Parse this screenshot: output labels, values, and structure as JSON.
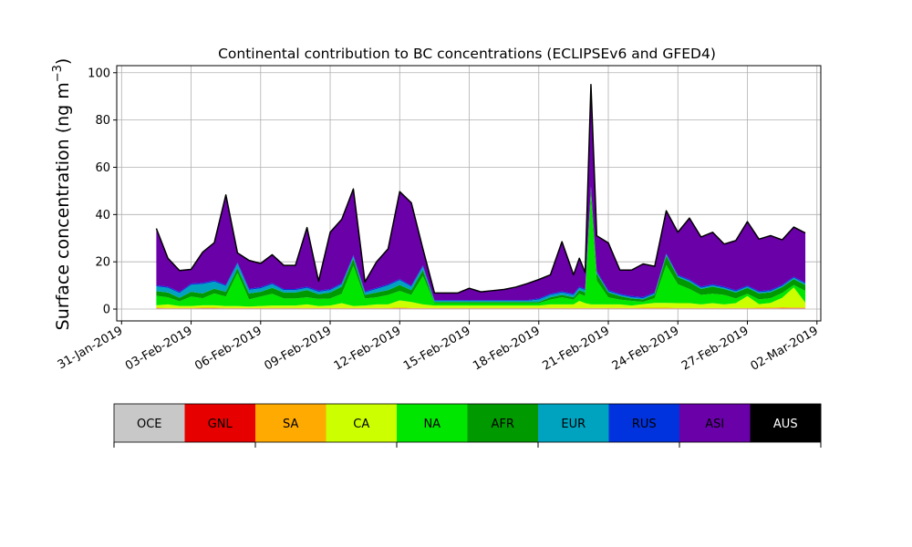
{
  "chart_data": {
    "type": "area",
    "stacked": true,
    "title": "Continental contribution to BC concentrations (ECLIPSEv6 and GFED4)",
    "xlabel": "",
    "ylabel": "Surface concentration (ng m",
    "ylabel_exponent": "−3",
    "ylabel_close": ")",
    "xlim": [
      "2019-01-30T19:00",
      "2019-03-02T04:00"
    ],
    "ylim": [
      -5,
      103
    ],
    "grid": true,
    "x_ticks": [
      "2019-01-31",
      "2019-02-03",
      "2019-02-06",
      "2019-02-09",
      "2019-02-12",
      "2019-02-15",
      "2019-02-18",
      "2019-02-21",
      "2019-02-24",
      "2019-02-27",
      "2019-03-02"
    ],
    "x_tick_labels": [
      "31-Jan-2019",
      "03-Feb-2019",
      "06-Feb-2019",
      "09-Feb-2019",
      "12-Feb-2019",
      "15-Feb-2019",
      "18-Feb-2019",
      "21-Feb-2019",
      "24-Feb-2019",
      "27-Feb-2019",
      "02-Mar-2019"
    ],
    "y_ticks": [
      0,
      20,
      40,
      60,
      80,
      100
    ],
    "y_tick_labels": [
      "0",
      "20",
      "40",
      "60",
      "80",
      "100"
    ],
    "x": [
      "2019-02-01T12:00",
      "2019-02-02T00:00",
      "2019-02-02T12:00",
      "2019-02-03T00:00",
      "2019-02-03T12:00",
      "2019-02-04T00:00",
      "2019-02-04T12:00",
      "2019-02-05T00:00",
      "2019-02-05T12:00",
      "2019-02-06T00:00",
      "2019-02-06T12:00",
      "2019-02-07T00:00",
      "2019-02-07T12:00",
      "2019-02-08T00:00",
      "2019-02-08T12:00",
      "2019-02-09T00:00",
      "2019-02-09T12:00",
      "2019-02-10T00:00",
      "2019-02-10T12:00",
      "2019-02-11T00:00",
      "2019-02-11T12:00",
      "2019-02-12T00:00",
      "2019-02-12T12:00",
      "2019-02-13T00:00",
      "2019-02-13T12:00",
      "2019-02-14T00:00",
      "2019-02-14T12:00",
      "2019-02-15T00:00",
      "2019-02-15T12:00",
      "2019-02-16T00:00",
      "2019-02-16T12:00",
      "2019-02-17T00:00",
      "2019-02-17T12:00",
      "2019-02-18T00:00",
      "2019-02-18T12:00",
      "2019-02-19T00:00",
      "2019-02-19T12:00",
      "2019-02-19T18:00",
      "2019-02-20T00:00",
      "2019-02-20T06:00",
      "2019-02-20T12:00",
      "2019-02-21T00:00",
      "2019-02-21T12:00",
      "2019-02-22T00:00",
      "2019-02-22T12:00",
      "2019-02-23T00:00",
      "2019-02-23T12:00",
      "2019-02-24T00:00",
      "2019-02-24T12:00",
      "2019-02-25T00:00",
      "2019-02-25T12:00",
      "2019-02-26T00:00",
      "2019-02-26T12:00",
      "2019-02-27T00:00",
      "2019-02-27T12:00",
      "2019-02-28T00:00",
      "2019-02-28T12:00",
      "2019-03-01T00:00",
      "2019-03-01T12:00"
    ],
    "series": [
      {
        "name": "OCE",
        "color": "#c8c8c8",
        "values": [
          0.3,
          0.2,
          0.2,
          0.2,
          0.3,
          0.3,
          0.2,
          0.2,
          0.2,
          0.2,
          0.2,
          0.2,
          0.2,
          0.2,
          0.2,
          0.2,
          0.2,
          0.2,
          0.2,
          0.2,
          0.2,
          0.3,
          0.2,
          0.2,
          0.2,
          0.2,
          0.2,
          0.2,
          0.2,
          0.2,
          0.2,
          0.2,
          0.2,
          0.2,
          0.2,
          0.2,
          0.2,
          0.2,
          0.2,
          0.2,
          0.2,
          0.2,
          0.2,
          0.2,
          0.2,
          0.2,
          0.2,
          0.2,
          0.2,
          0.2,
          0.2,
          0.2,
          0.2,
          0.2,
          0.2,
          0.2,
          0.3,
          0.3,
          0.3
        ]
      },
      {
        "name": "GNL",
        "color": "#e60000",
        "values": [
          0.1,
          0.1,
          0.1,
          0.1,
          0.1,
          0.1,
          0.1,
          0.1,
          0.1,
          0.1,
          0.1,
          0.1,
          0.1,
          0.1,
          0.1,
          0.1,
          0.1,
          0.1,
          0.1,
          0.1,
          0.1,
          0.1,
          0.1,
          0.1,
          0.1,
          0.1,
          0.1,
          0.1,
          0.1,
          0.1,
          0.1,
          0.1,
          0.1,
          0.1,
          0.1,
          0.1,
          0.1,
          0.1,
          0.1,
          0.1,
          0.1,
          0.1,
          0.1,
          0.1,
          0.1,
          0.1,
          0.1,
          0.1,
          0.1,
          0.1,
          0.1,
          0.1,
          0.1,
          0.1,
          0.1,
          0.1,
          0.1,
          0.1,
          0.1
        ]
      },
      {
        "name": "SA",
        "color": "#ffaa00",
        "values": [
          0.2,
          0.2,
          0.2,
          0.2,
          0.2,
          0.2,
          0.2,
          0.2,
          0.2,
          0.2,
          0.2,
          0.2,
          0.2,
          0.2,
          0.2,
          0.2,
          0.2,
          0.2,
          0.2,
          0.2,
          0.2,
          0.3,
          0.2,
          0.2,
          0.2,
          0.2,
          0.2,
          0.2,
          0.2,
          0.2,
          0.2,
          0.2,
          0.2,
          0.2,
          0.2,
          0.2,
          0.2,
          0.2,
          0.2,
          0.2,
          0.2,
          0.2,
          0.2,
          0.2,
          0.3,
          0.3,
          0.3,
          0.2,
          0.2,
          0.2,
          0.2,
          0.2,
          0.2,
          0.2,
          0.3,
          0.3,
          0.4,
          0.3,
          0.3
        ]
      },
      {
        "name": "CA",
        "color": "#ccff00",
        "values": [
          1.0,
          1.5,
          0.8,
          0.8,
          1.0,
          1.0,
          0.8,
          0.8,
          0.6,
          0.8,
          1.0,
          1.0,
          1.0,
          1.5,
          0.8,
          1.0,
          2.0,
          0.8,
          1.0,
          1.5,
          1.5,
          3.0,
          2.5,
          1.5,
          1.0,
          1.0,
          1.0,
          1.0,
          1.0,
          1.0,
          1.0,
          1.0,
          1.0,
          1.0,
          1.5,
          1.5,
          1.5,
          3.0,
          2.0,
          1.5,
          1.5,
          1.5,
          1.5,
          1.0,
          1.5,
          2.0,
          2.0,
          2.0,
          2.0,
          1.5,
          2.0,
          1.5,
          2.0,
          5.0,
          1.5,
          2.0,
          4.0,
          8.5,
          2.0
        ]
      },
      {
        "name": "NA",
        "color": "#00e600",
        "values": [
          4.0,
          3.0,
          2.0,
          4.0,
          3.0,
          5.0,
          4.0,
          14.0,
          3.0,
          4.0,
          5.0,
          3.0,
          3.0,
          3.0,
          3.0,
          3.0,
          4.0,
          17.0,
          3.0,
          3.0,
          4.0,
          4.0,
          3.0,
          12.0,
          1.0,
          1.0,
          1.0,
          1.0,
          1.0,
          1.0,
          1.0,
          1.0,
          1.0,
          1.0,
          2.0,
          3.0,
          2.0,
          3.0,
          3.0,
          46.0,
          10.0,
          3.0,
          2.0,
          2.0,
          1.0,
          2.0,
          16.0,
          8.0,
          6.0,
          4.0,
          4.0,
          4.0,
          2.0,
          1.0,
          2.0,
          2.0,
          2.0,
          1.0,
          5.0
        ]
      },
      {
        "name": "AFR",
        "color": "#009900",
        "values": [
          2.0,
          2.0,
          1.5,
          2.0,
          2.0,
          2.0,
          2.0,
          2.0,
          2.5,
          2.0,
          2.5,
          2.5,
          2.5,
          3.0,
          2.0,
          2.5,
          3.0,
          3.0,
          1.5,
          2.0,
          2.0,
          2.5,
          2.0,
          2.5,
          0.5,
          0.5,
          0.5,
          0.5,
          0.5,
          0.5,
          0.5,
          0.5,
          0.5,
          0.5,
          1.0,
          1.0,
          1.0,
          1.5,
          1.5,
          3.0,
          3.0,
          2.0,
          1.5,
          1.0,
          1.0,
          1.5,
          4.0,
          3.0,
          3.0,
          2.5,
          3.0,
          2.5,
          2.5,
          2.5,
          2.5,
          2.5,
          2.5,
          2.5,
          2.5
        ]
      },
      {
        "name": "EUR",
        "color": "#00a3bf",
        "values": [
          2.0,
          2.0,
          2.0,
          3.0,
          4.0,
          3.0,
          2.5,
          2.0,
          1.5,
          1.5,
          1.5,
          1.0,
          1.0,
          1.0,
          1.0,
          1.0,
          1.0,
          1.0,
          1.0,
          1.5,
          2.0,
          2.0,
          1.5,
          1.5,
          0.5,
          0.5,
          0.5,
          0.5,
          0.5,
          0.5,
          0.5,
          0.5,
          0.5,
          1.0,
          1.0,
          1.0,
          1.0,
          1.0,
          1.0,
          0.5,
          0.5,
          0.5,
          0.5,
          0.5,
          0.5,
          0.5,
          0.5,
          0.5,
          0.5,
          0.5,
          0.5,
          0.5,
          0.5,
          0.5,
          0.5,
          0.5,
          0.5,
          0.5,
          0.5
        ]
      },
      {
        "name": "RUS",
        "color": "#0033dd",
        "values": [
          0.5,
          0.5,
          0.5,
          0.5,
          0.5,
          0.5,
          0.5,
          0.5,
          0.5,
          0.5,
          0.5,
          0.5,
          0.5,
          0.5,
          0.5,
          0.5,
          0.5,
          0.5,
          0.5,
          0.5,
          0.5,
          0.5,
          0.5,
          0.5,
          0.3,
          0.3,
          0.3,
          0.3,
          0.3,
          0.3,
          0.3,
          0.3,
          0.3,
          0.5,
          0.5,
          0.5,
          0.5,
          0.5,
          0.5,
          0.5,
          0.5,
          0.5,
          0.5,
          0.5,
          0.5,
          0.5,
          0.5,
          0.5,
          0.5,
          0.5,
          0.5,
          0.5,
          0.5,
          0.5,
          0.5,
          0.5,
          0.5,
          0.5,
          0.5
        ]
      },
      {
        "name": "ASI",
        "color": "#6a00a8",
        "values": [
          24.0,
          12.0,
          9.0,
          6.0,
          13.0,
          16.0,
          38.0,
          4.0,
          12.0,
          10.0,
          12.0,
          10.0,
          10.0,
          25.0,
          4.0,
          24.0,
          27.0,
          28.0,
          4.0,
          11.0,
          15.0,
          37.0,
          35.0,
          7.0,
          3.0,
          3.0,
          3.0,
          5.0,
          3.5,
          4.0,
          4.5,
          5.5,
          7.0,
          8.0,
          8.0,
          21.0,
          8.0,
          12.0,
          7.0,
          43.0,
          15.0,
          20.0,
          10.0,
          11.0,
          14.0,
          11.0,
          18.0,
          18.0,
          26.0,
          21.0,
          22.0,
          18.0,
          21.0,
          27.0,
          22.0,
          23.0,
          19.0,
          21.0,
          21.0
        ]
      },
      {
        "name": "AUS",
        "color": "#000000",
        "values": [
          0,
          0,
          0,
          0,
          0,
          0,
          0,
          0,
          0,
          0,
          0,
          0,
          0,
          0,
          0,
          0,
          0,
          0,
          0,
          0,
          0,
          0,
          0,
          0,
          0,
          0,
          0,
          0,
          0,
          0,
          0,
          0,
          0,
          0,
          0,
          0,
          0,
          0,
          0,
          0,
          0,
          0,
          0,
          0,
          0,
          0,
          0,
          0,
          0,
          0,
          0,
          0,
          0,
          0,
          0,
          0,
          0,
          0,
          0
        ]
      }
    ],
    "legend": {
      "placement": "bottom",
      "style": "colorbar",
      "entries": [
        "OCE",
        "GNL",
        "SA",
        "CA",
        "NA",
        "AFR",
        "EUR",
        "RUS",
        "ASI",
        "AUS"
      ]
    }
  }
}
